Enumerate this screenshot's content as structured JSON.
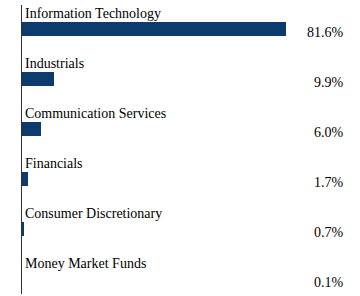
{
  "chart_data": {
    "type": "bar",
    "orientation": "horizontal",
    "categories": [
      "Information Technology",
      "Industrials",
      "Communication Services",
      "Financials",
      "Consumer Discretionary",
      "Money Market Funds"
    ],
    "values": [
      81.6,
      9.9,
      6.0,
      1.7,
      0.7,
      0.1
    ],
    "value_labels": [
      "81.6%",
      "9.9%",
      "6.0%",
      "1.7%",
      "0.7%",
      "0.1%"
    ],
    "color": "#0d3b6e",
    "xlim": [
      0,
      100
    ],
    "data_labels": true,
    "tick_labels": false,
    "grid": false
  }
}
